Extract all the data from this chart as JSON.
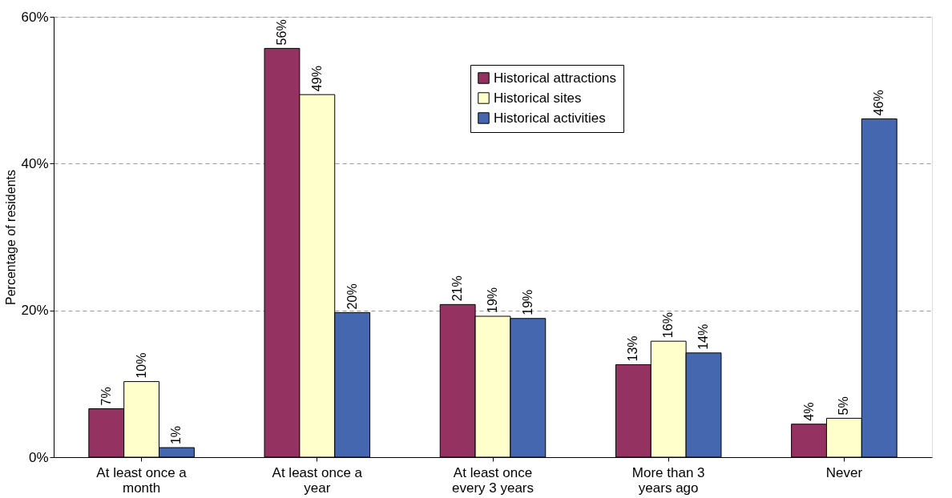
{
  "chart_data": {
    "type": "bar",
    "ylabel": "Percentage of residents",
    "categories": [
      "At least once a month",
      "At least once a year",
      "At least once every 3 years",
      "More than 3 years ago",
      "Never"
    ],
    "series": [
      {
        "name": "Historical attractions",
        "color": "#943262",
        "values": [
          6.6,
          55.7,
          20.8,
          12.6,
          4.5
        ],
        "value_labels": [
          "7%",
          "56%",
          "21%",
          "13%",
          "4%"
        ]
      },
      {
        "name": "Historical sites",
        "color": "#ffffcc",
        "values": [
          10.3,
          49.4,
          19.2,
          15.8,
          5.3
        ],
        "value_labels": [
          "10%",
          "49%",
          "19%",
          "16%",
          "5%"
        ]
      },
      {
        "name": "Historical activities",
        "color": "#4467b0",
        "values": [
          1.3,
          19.7,
          18.9,
          14.2,
          46.1
        ],
        "value_labels": [
          "1%",
          "20%",
          "19%",
          "14%",
          "46%"
        ]
      }
    ],
    "ylim": [
      0,
      60
    ],
    "yticks": [
      {
        "value": 0,
        "label": "0%"
      },
      {
        "value": 20,
        "label": "20%"
      },
      {
        "value": 40,
        "label": "40%"
      },
      {
        "value": 60,
        "label": "60%"
      }
    ],
    "grid": "y",
    "legend": "top"
  }
}
